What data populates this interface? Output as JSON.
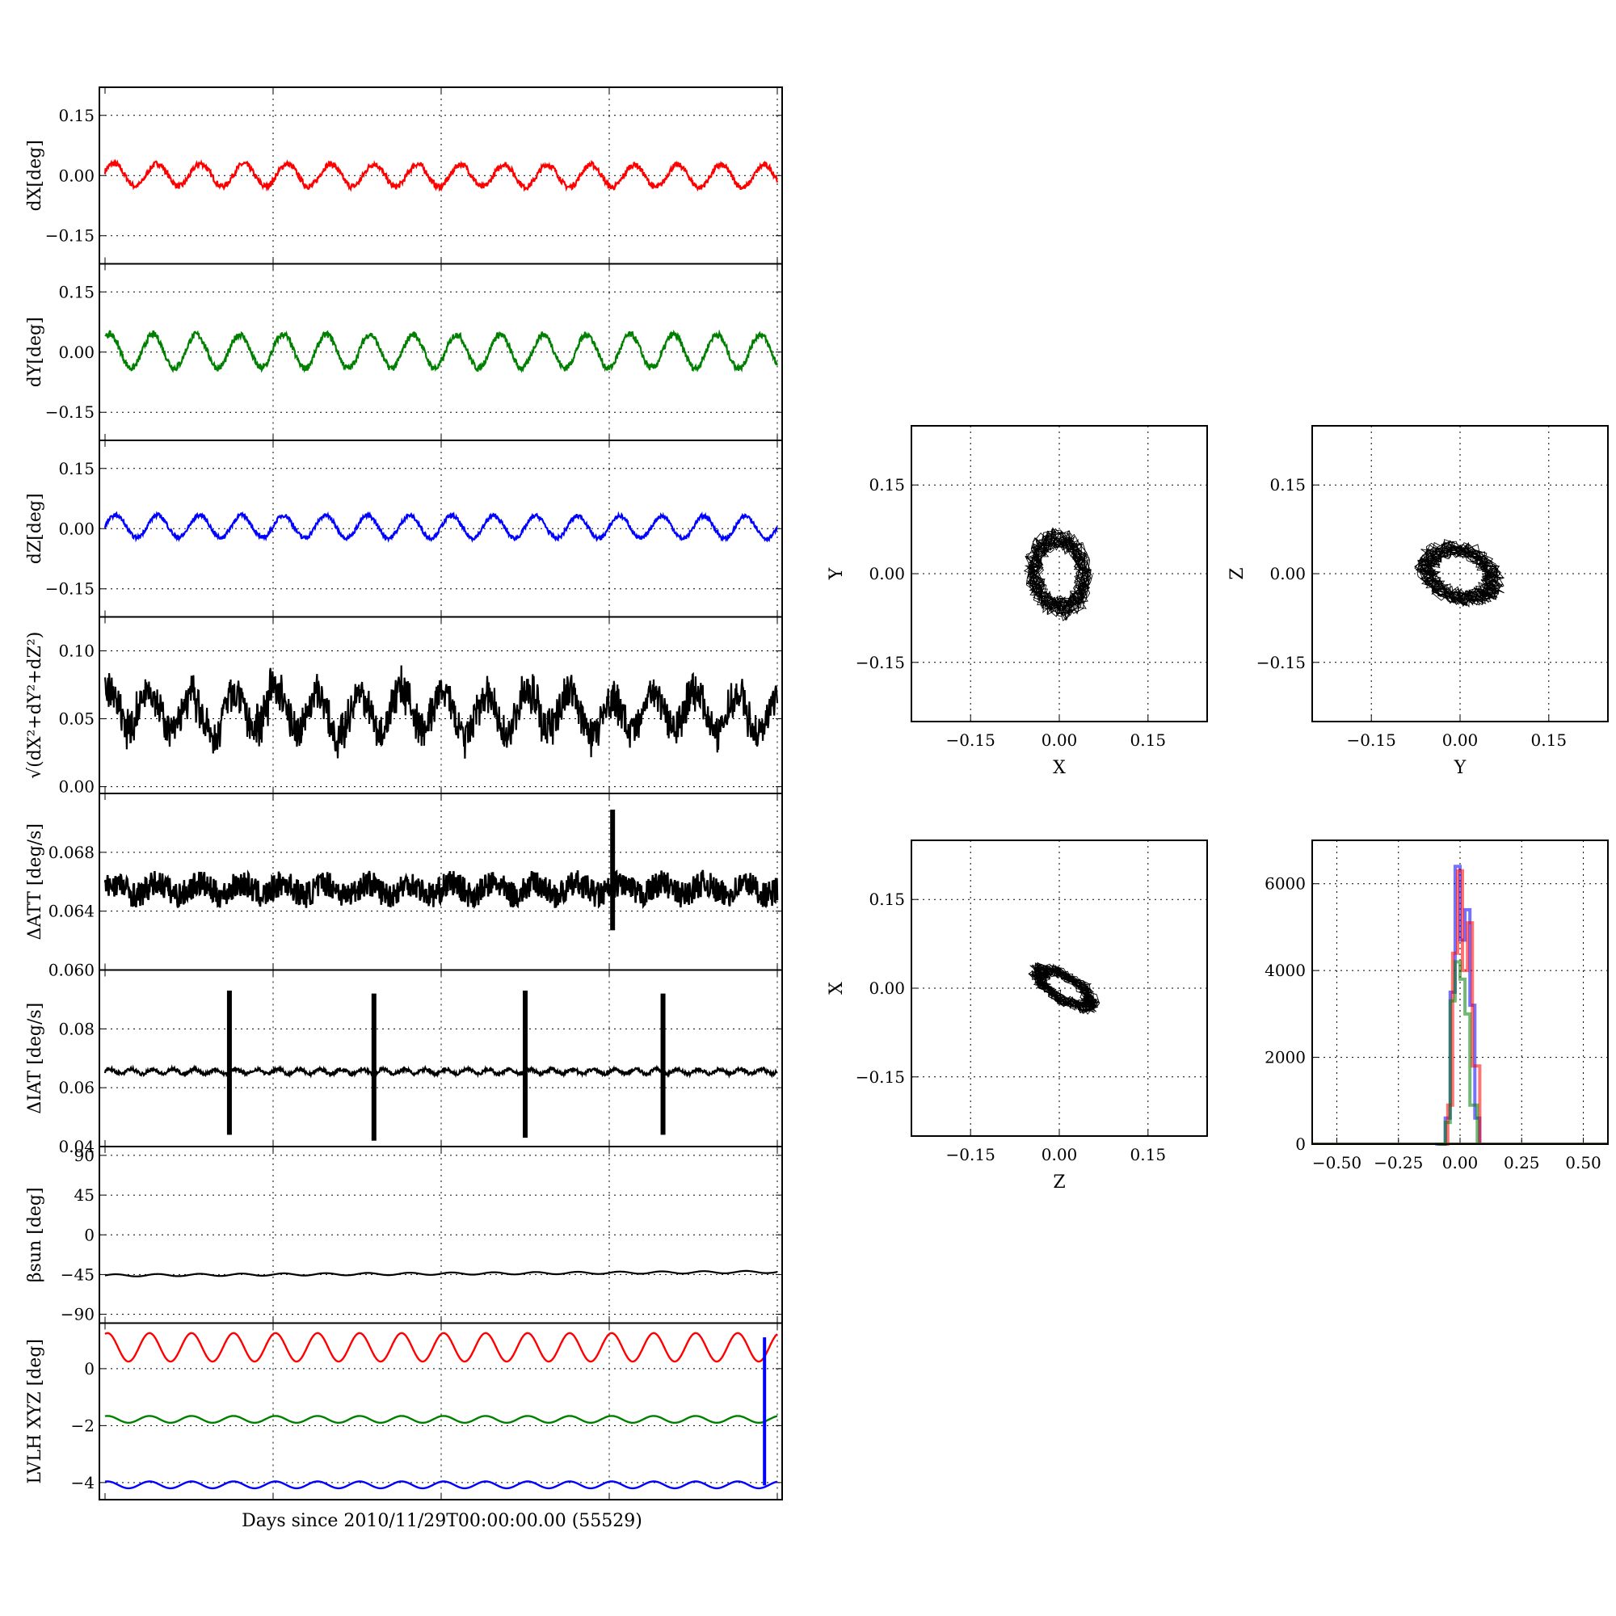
{
  "figure": {
    "xlabel_time": "Days since 2010/11/29T00:00:00.00 (55529)"
  },
  "chart_data": [
    {
      "id": "dX",
      "type": "line",
      "ylabel": "dX[deg]",
      "ylim": [
        -0.22,
        0.22
      ],
      "yticks": [
        -0.15,
        0.0,
        0.15
      ],
      "yticklabels": [
        "−0.15",
        "0.00",
        "0.15"
      ],
      "color": "#ff0000",
      "grid": true,
      "signal": {
        "mean": 0.002,
        "amplitude": 0.028,
        "cycles": 15.5,
        "phase": 0.3,
        "noise": 0.007,
        "drift": -0.004
      }
    },
    {
      "id": "dY",
      "type": "line",
      "ylabel": "dY[deg]",
      "ylim": [
        -0.22,
        0.22
      ],
      "yticks": [
        -0.15,
        0.0,
        0.15
      ],
      "yticklabels": [
        "−0.15",
        "0.00",
        "0.15"
      ],
      "color": "#008000",
      "grid": true,
      "signal": {
        "mean": 0.002,
        "amplitude": 0.042,
        "cycles": 15.5,
        "phase": 0.9,
        "noise": 0.008,
        "drift": 0.0
      }
    },
    {
      "id": "dZ",
      "type": "line",
      "ylabel": "dZ[deg]",
      "ylim": [
        -0.22,
        0.22
      ],
      "yticks": [
        -0.15,
        0.0,
        0.15
      ],
      "yticklabels": [
        "−0.15",
        "0.00",
        "0.15"
      ],
      "color": "#0000ff",
      "grid": true,
      "signal": {
        "mean": 0.006,
        "amplitude": 0.028,
        "cycles": 16,
        "phase": 0.0,
        "noise": 0.005,
        "drift": -0.003
      }
    },
    {
      "id": "dR",
      "type": "line",
      "ylabel": "√(dX²+dY²+dZ²)",
      "ylim": [
        -0.005,
        0.125
      ],
      "yticks": [
        0.0,
        0.05,
        0.1
      ],
      "yticklabels": [
        "0.00",
        "0.05",
        "0.10"
      ],
      "color": "#000000",
      "grid": true,
      "signal": {
        "mean": 0.055,
        "amplitude": 0.015,
        "cycles": 16,
        "phase": 1.2,
        "noise": 0.012,
        "drift": 0.0
      }
    },
    {
      "id": "dATT",
      "type": "line",
      "ylabel": "ΔATT [deg/s]",
      "ylim": [
        0.06,
        0.072
      ],
      "yticks": [
        0.06,
        0.064,
        0.068
      ],
      "yticklabels": [
        "0.060",
        "0.064",
        "0.068"
      ],
      "color": "#000000",
      "grid": true,
      "signal": {
        "mean": 0.0655,
        "amplitude": 0.0004,
        "cycles": 16,
        "phase": 0.0,
        "noise": 0.0009,
        "drift": 0.0
      },
      "spikes": [
        {
          "x": 0.755,
          "min": 0.0627,
          "max": 0.0709
        }
      ]
    },
    {
      "id": "dIAT",
      "type": "line",
      "ylabel": "ΔIAT [deg/s]",
      "ylim": [
        0.04,
        0.1
      ],
      "yticks": [
        0.04,
        0.06,
        0.08
      ],
      "yticklabels": [
        "0.04",
        "0.06",
        "0.08"
      ],
      "color": "#000000",
      "grid": true,
      "signal": {
        "mean": 0.0655,
        "amplitude": 0.0008,
        "cycles": 32,
        "phase": 0.0,
        "noise": 0.0006,
        "drift": 0.0
      },
      "spikes": [
        {
          "x": 0.185,
          "min": 0.044,
          "max": 0.093
        },
        {
          "x": 0.4,
          "min": 0.042,
          "max": 0.092
        },
        {
          "x": 0.625,
          "min": 0.043,
          "max": 0.093
        },
        {
          "x": 0.83,
          "min": 0.044,
          "max": 0.092
        }
      ]
    },
    {
      "id": "beta",
      "type": "line",
      "ylabel": "βsun [deg]",
      "ylim": [
        -100,
        100
      ],
      "yticks": [
        -90,
        -45,
        0,
        45,
        90
      ],
      "yticklabels": [
        "−90",
        "−45",
        "0",
        "45",
        "90"
      ],
      "color": "#000000",
      "grid": true,
      "signal": {
        "mean": -46,
        "amplitude": 1.3,
        "cycles": 16,
        "phase": 0.0,
        "noise": 0.0,
        "drift": 4
      }
    },
    {
      "id": "lvlh",
      "type": "line",
      "ylabel": "LVLH XYZ [deg]",
      "ylim": [
        -4.6,
        1.6
      ],
      "yticks": [
        -4,
        -2,
        0
      ],
      "yticklabels": [
        "−4",
        "−2",
        "0"
      ],
      "grid": true,
      "series": [
        {
          "color": "#ff0000",
          "mean": 0.75,
          "amplitude": 0.5,
          "cycles": 16
        },
        {
          "color": "#008000",
          "mean": -1.78,
          "amplitude": 0.12,
          "cycles": 16
        },
        {
          "color": "#0000ff",
          "mean": -4.08,
          "amplitude": 0.12,
          "cycles": 16
        }
      ],
      "spike": {
        "x": 0.981,
        "color": "#0000ff",
        "min": -4.1,
        "max": 1.1
      }
    },
    {
      "id": "XY",
      "type": "scatter",
      "xlabel": "X",
      "ylabel": "Y",
      "xlim": [
        -0.25,
        0.25
      ],
      "ylim": [
        -0.25,
        0.25
      ],
      "ticks": [
        -0.15,
        0.0,
        0.15
      ],
      "ticklabels": [
        "−0.15",
        "0.00",
        "0.15"
      ],
      "cloud": {
        "cx": 0.0,
        "cy": 0.0,
        "rx": 0.055,
        "ry": 0.075,
        "tilt": 0.15
      }
    },
    {
      "id": "YZ",
      "type": "scatter",
      "xlabel": "Y",
      "ylabel": "Z",
      "xlim": [
        -0.25,
        0.25
      ],
      "ylim": [
        -0.25,
        0.25
      ],
      "ticks": [
        -0.15,
        0.0,
        0.15
      ],
      "ticklabels": [
        "−0.15",
        "0.00",
        "0.15"
      ],
      "cloud": {
        "cx": 0.0,
        "cy": 0.0,
        "rx": 0.075,
        "ry": 0.05,
        "tilt": -0.35
      }
    },
    {
      "id": "ZX",
      "type": "scatter",
      "xlabel": "Z",
      "ylabel": "X",
      "xlim": [
        -0.25,
        0.25
      ],
      "ylim": [
        -0.25,
        0.25
      ],
      "ticks": [
        -0.15,
        0.0,
        0.15
      ],
      "ticklabels": [
        "−0.15",
        "0.00",
        "0.15"
      ],
      "cloud": {
        "cx": 0.01,
        "cy": 0.0,
        "rx": 0.065,
        "ry": 0.025,
        "tilt": -0.55
      }
    },
    {
      "id": "hist",
      "type": "bar",
      "xlim": [
        -0.6,
        0.6
      ],
      "ylim": [
        0,
        7000
      ],
      "xticks": [
        -0.5,
        -0.25,
        0.0,
        0.25,
        0.5
      ],
      "xticklabels": [
        "−0.50",
        "−0.25",
        "0.00",
        "0.25",
        "0.50"
      ],
      "yticks": [
        0,
        2000,
        4000,
        6000
      ],
      "yticklabels": [
        "0",
        "2000",
        "4000",
        "6000"
      ],
      "series": [
        {
          "color": "#0000ff",
          "alpha": 0.55,
          "values": [
            [
              -0.1,
              0
            ],
            [
              -0.06,
              600
            ],
            [
              -0.04,
              3500
            ],
            [
              -0.02,
              6400
            ],
            [
              0.0,
              4700
            ],
            [
              0.02,
              5400
            ],
            [
              0.04,
              3200
            ],
            [
              0.06,
              600
            ],
            [
              0.08,
              0
            ]
          ]
        },
        {
          "color": "#ff0000",
          "alpha": 0.55,
          "values": [
            [
              -0.08,
              0
            ],
            [
              -0.05,
              900
            ],
            [
              -0.03,
              4400
            ],
            [
              -0.01,
              6300
            ],
            [
              0.01,
              4000
            ],
            [
              0.03,
              5100
            ],
            [
              0.05,
              1800
            ],
            [
              0.08,
              0
            ]
          ]
        },
        {
          "color": "#008000",
          "alpha": 0.55,
          "values": [
            [
              -0.09,
              0
            ],
            [
              -0.06,
              500
            ],
            [
              -0.04,
              3300
            ],
            [
              -0.02,
              4200
            ],
            [
              0.0,
              3800
            ],
            [
              0.02,
              3000
            ],
            [
              0.04,
              900
            ],
            [
              0.07,
              0
            ]
          ]
        }
      ]
    }
  ]
}
